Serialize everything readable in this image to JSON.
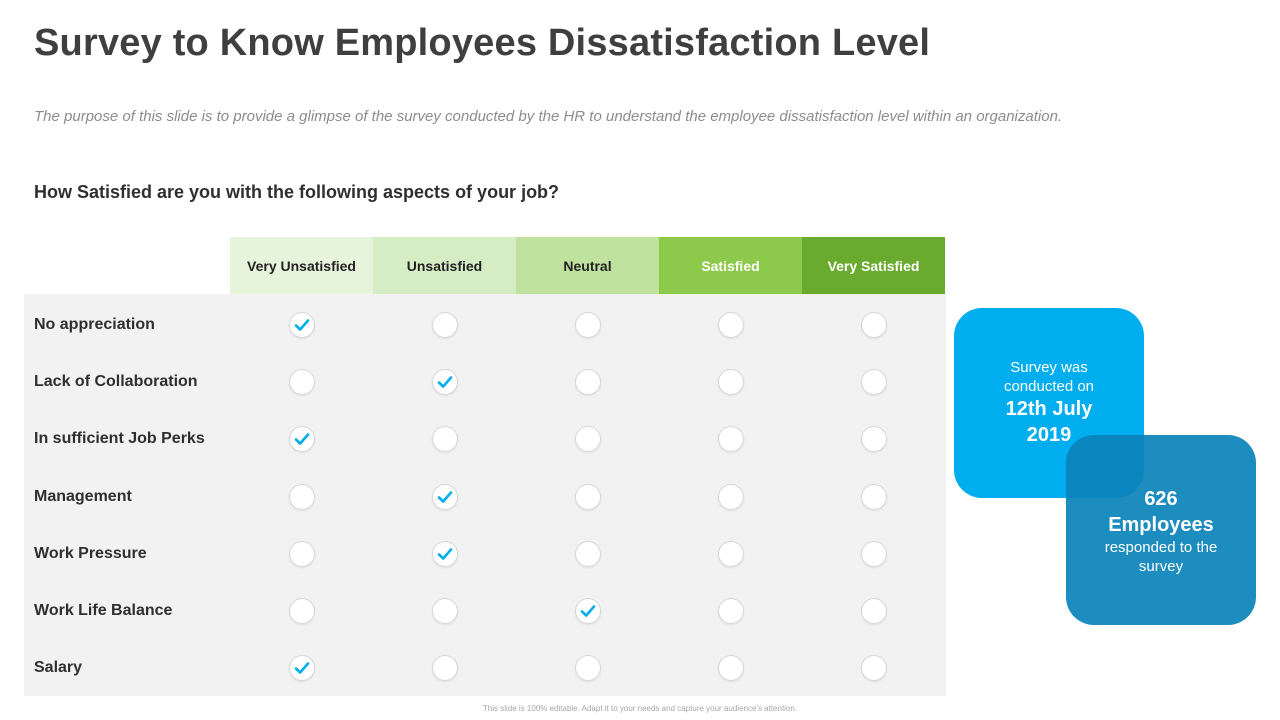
{
  "title": "Survey to Know Employees Dissatisfaction Level",
  "subtitle": "The purpose of this slide is to provide a glimpse of the survey conducted by the HR to understand the employee dissatisfaction level within an organization.",
  "question": "How Satisfied are you with the following aspects of your job?",
  "columns": [
    "Very Unsatisfied",
    "Unsatisfied",
    "Neutral",
    "Satisfied",
    "Very Satisfied"
  ],
  "column_colors": [
    "#e6f4dc",
    "#d5ecc4",
    "#bfe29f",
    "#8dca4c",
    "#6aaa2e"
  ],
  "check_color": "#00aeef",
  "rows": [
    {
      "label": "No appreciation",
      "selected": 0
    },
    {
      "label": "Lack of Collaboration",
      "selected": 1
    },
    {
      "label": "In sufficient Job Perks",
      "selected": 0
    },
    {
      "label": "Management",
      "selected": 1
    },
    {
      "label": "Work Pressure",
      "selected": 1
    },
    {
      "label": "Work Life Balance",
      "selected": 2
    },
    {
      "label": "Salary",
      "selected": 0
    }
  ],
  "info_box_1": {
    "line1": "Survey was",
    "line2": "conducted on",
    "highlight1": "12th July",
    "highlight2": "2019"
  },
  "info_box_2": {
    "highlight1": "626",
    "highlight2": "Employees",
    "line1": "responded to the",
    "line2": "survey"
  },
  "footer": "This slide is 100% editable. Adapt it to your needs and capture your audience's attention."
}
